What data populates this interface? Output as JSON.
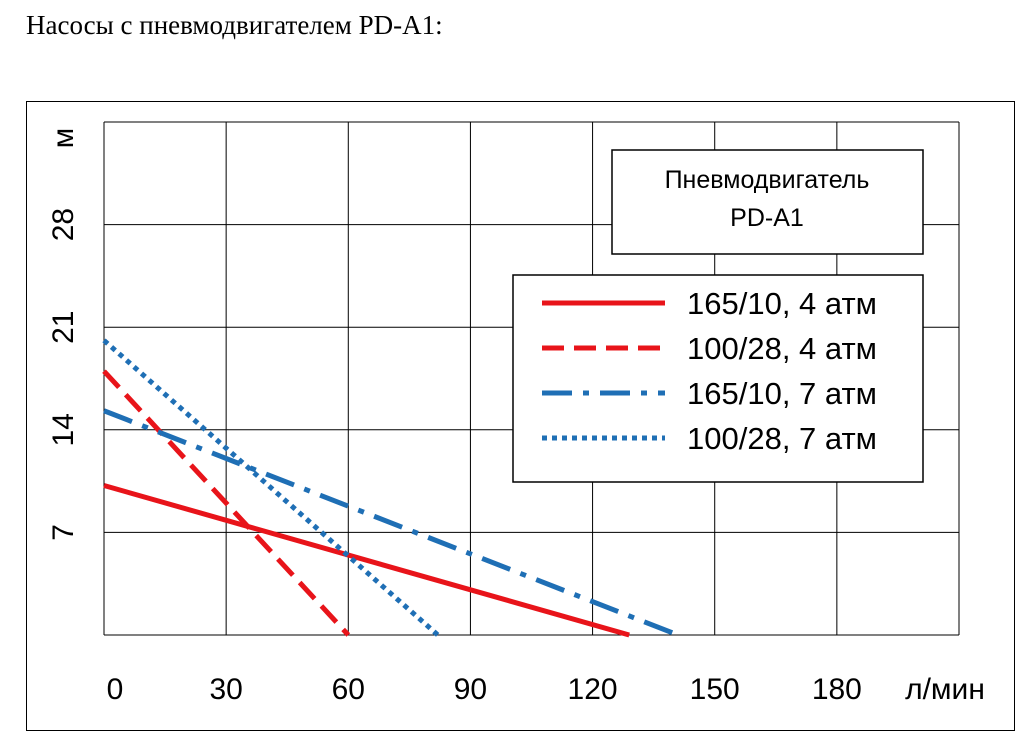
{
  "page": {
    "heading": "Насосы с пневмодвигателем PD-A1:"
  },
  "chart_data": {
    "type": "line",
    "title": "",
    "xlabel": "л/мин",
    "ylabel": "м",
    "xlim": [
      0,
      210
    ],
    "ylim": [
      0,
      35
    ],
    "x_ticks": [
      0,
      30,
      60,
      90,
      120,
      150,
      180
    ],
    "x_tick_labels": [
      "0",
      "30",
      "60",
      "90",
      "120",
      "150",
      "180"
    ],
    "y_ticks": [
      7,
      14,
      21,
      28
    ],
    "y_tick_labels": [
      "7",
      "14",
      "21",
      "28"
    ],
    "grid": true,
    "annotation": {
      "line1": "Пневмодвигатель",
      "line2": "PD-A1"
    },
    "legend_position": "center-right",
    "series": [
      {
        "name": "165/10, 4 атм",
        "color": "#e8141a",
        "dash": "solid",
        "x": [
          0,
          129
        ],
        "y": [
          10.2,
          0
        ]
      },
      {
        "name": "100/28, 4 атм",
        "color": "#e8141a",
        "dash": "dashed",
        "x": [
          0,
          60
        ],
        "y": [
          18.0,
          0
        ]
      },
      {
        "name": "165/10, 7 атм",
        "color": "#1f6fb5",
        "dash": "dashdot",
        "x": [
          0,
          141
        ],
        "y": [
          15.3,
          0
        ]
      },
      {
        "name": "100/28, 7 атм",
        "color": "#1f6fb5",
        "dash": "dotted",
        "x": [
          0,
          82
        ],
        "y": [
          20.1,
          0
        ]
      }
    ]
  }
}
